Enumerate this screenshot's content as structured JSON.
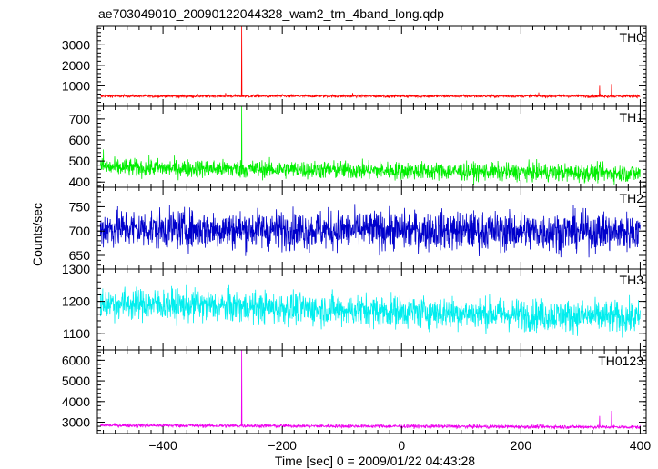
{
  "chart_data": {
    "type": "line",
    "title": "ae703049010_20090122044328_wam2_trn_4band_long.qdp",
    "xlabel": "Time [sec] 0 = 2009/01/22 04:43:28",
    "ylabel": "Counts/sec",
    "xlim": [
      -510,
      410
    ],
    "x_ticks": [
      -400,
      -200,
      0,
      200,
      400
    ],
    "x_tick_labels": [
      "−400",
      "−200",
      "0",
      "200",
      "400"
    ],
    "bin_seconds": 0.5,
    "panels": [
      {
        "name": "TH0",
        "color": "#ff0000",
        "ylim": [
          0,
          3900
        ],
        "yticks": [
          1000,
          2000,
          3000
        ],
        "ytick_labels": [
          "1000",
          "2000",
          "3000"
        ],
        "baseline": 500,
        "noise": 45,
        "spikes": [
          {
            "x": -268,
            "y": 3900
          },
          {
            "x": -295,
            "y": 650
          },
          {
            "x": -82,
            "y": 650
          },
          {
            "x": 208,
            "y": 560
          },
          {
            "x": 230,
            "y": 680
          },
          {
            "x": 332,
            "y": 1000
          },
          {
            "x": 352,
            "y": 1100
          }
        ]
      },
      {
        "name": "TH1",
        "color": "#00ee00",
        "ylim": [
          375,
          760
        ],
        "yticks": [
          400,
          500,
          600,
          700
        ],
        "ytick_labels": [
          "400",
          "500",
          "600",
          "700"
        ],
        "baseline": 470,
        "end_baseline": 440,
        "noise": 30,
        "spikes": [
          {
            "x": -268,
            "y": 760
          },
          {
            "x": -500,
            "y": 555
          }
        ]
      },
      {
        "name": "TH2",
        "color": "#0000cc",
        "ylim": [
          622,
          790
        ],
        "yticks": [
          650,
          700,
          750
        ],
        "ytick_labels": [
          "650",
          "700",
          "750"
        ],
        "baseline": 705,
        "end_baseline": 698,
        "noise": 28,
        "spikes": []
      },
      {
        "name": "TH3",
        "color": "#00eeee",
        "ylim": [
          1050,
          1300
        ],
        "yticks": [
          1100,
          1200,
          1300
        ],
        "ytick_labels": [
          "1100",
          "1200",
          "1300"
        ],
        "baseline": 1195,
        "end_baseline": 1148,
        "noise": 35,
        "spikes": []
      },
      {
        "name": "TH0123",
        "color": "#ee00ee",
        "ylim": [
          2450,
          6500
        ],
        "yticks": [
          3000,
          4000,
          5000,
          6000
        ],
        "ytick_labels": [
          "3000",
          "4000",
          "5000",
          "6000"
        ],
        "baseline": 2850,
        "end_baseline": 2760,
        "noise": 60,
        "spikes": [
          {
            "x": -268,
            "y": 6500
          },
          {
            "x": 332,
            "y": 3300
          },
          {
            "x": 352,
            "y": 3550
          }
        ]
      }
    ]
  }
}
